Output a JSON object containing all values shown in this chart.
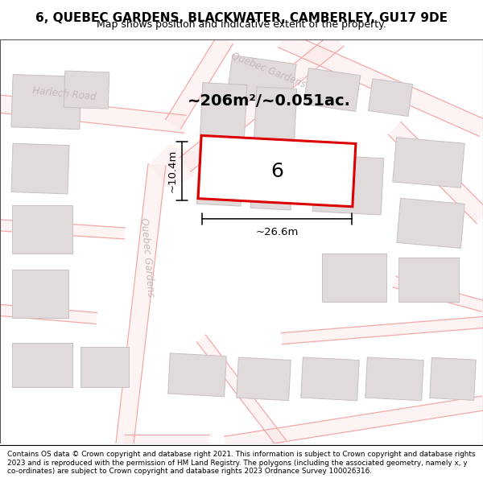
{
  "title": "6, QUEBEC GARDENS, BLACKWATER, CAMBERLEY, GU17 9DE",
  "subtitle": "Map shows position and indicative extent of the property.",
  "footer": "Contains OS data © Crown copyright and database right 2021. This information is subject to Crown copyright and database rights 2023 and is reproduced with the permission of HM Land Registry. The polygons (including the associated geometry, namely x, y co-ordinates) are subject to Crown copyright and database rights 2023 Ordnance Survey 100026316.",
  "map_bg": "#f9f6f6",
  "road_line_color": "#f5a8a8",
  "road_fill_color": "#fce8e8",
  "building_fill": "#e0dada",
  "building_edge": "#c8c0c0",
  "plot_color": "#dd0000",
  "plot_lw": 2.0,
  "label_number": "6",
  "area_label": "~206m²/~0.051ac.",
  "dim_width": "~26.6m",
  "dim_height": "~10.4m",
  "road_label_harlech": "Harlech Road",
  "road_label_qg_upper": "Quebec Gardens",
  "road_label_qg_lower": "Quebec Gardens",
  "road_text_color": "#c8b8b8",
  "title_fontsize": 11,
  "subtitle_fontsize": 9
}
